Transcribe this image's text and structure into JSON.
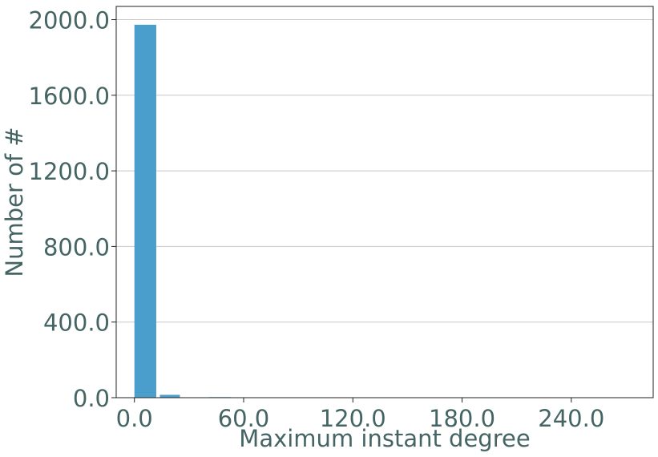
{
  "chart_data": {
    "type": "bar",
    "xlabel": "Maximum instant degree",
    "ylabel": "Number of #",
    "xlim": [
      -10,
      285
    ],
    "ylim": [
      0,
      2070
    ],
    "x_ticks": [
      {
        "value": 0,
        "label": "0.0"
      },
      {
        "value": 60,
        "label": "60.0"
      },
      {
        "value": 120,
        "label": "120.0"
      },
      {
        "value": 180,
        "label": "180.0"
      },
      {
        "value": 240,
        "label": "240.0"
      }
    ],
    "y_ticks": [
      {
        "value": 0,
        "label": "0.0"
      },
      {
        "value": 400,
        "label": "400.0"
      },
      {
        "value": 800,
        "label": "800.0"
      },
      {
        "value": 1200,
        "label": "1200.0"
      },
      {
        "value": 1600,
        "label": "1600.0"
      },
      {
        "value": 2000,
        "label": "2000.0"
      }
    ],
    "grid": "y",
    "bar_color": "#4a9ecb",
    "bars": [
      {
        "x0": 0,
        "x1": 12,
        "value": 1973
      },
      {
        "x0": 14,
        "x1": 25,
        "value": 15
      },
      {
        "x0": 41,
        "x1": 53,
        "value": 3
      },
      {
        "x0": 137,
        "x1": 149,
        "value": 2
      }
    ]
  }
}
